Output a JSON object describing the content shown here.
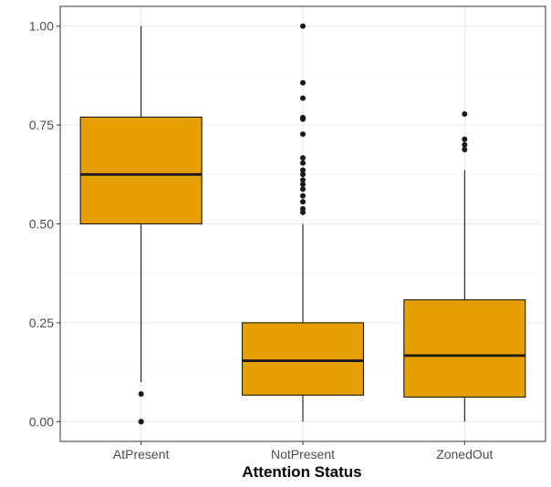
{
  "chart_data": {
    "type": "boxplot",
    "title": "",
    "xlabel": "Attention Status",
    "ylabel": "",
    "ylim": [
      -0.05,
      1.05
    ],
    "y_ticks": [
      0.0,
      0.25,
      0.5,
      0.75,
      1.0
    ],
    "y_tick_labels": [
      "0.00",
      "0.25",
      "0.50",
      "0.75",
      "1.00"
    ],
    "grid": true,
    "legend": "none",
    "fill_color": "#E69F00",
    "categories": [
      "AtPresent",
      "NotPresent",
      "ZonedOut"
    ],
    "boxes": [
      {
        "category": "AtPresent",
        "whisker_low": 0.1,
        "q1": 0.5,
        "median": 0.625,
        "q3": 0.77,
        "whisker_high": 1.0,
        "outliers": [
          0.07,
          0.0,
          0.0
        ]
      },
      {
        "category": "NotPresent",
        "whisker_low": 0.0,
        "q1": 0.067,
        "median": 0.154,
        "q3": 0.25,
        "whisker_high": 0.5,
        "outliers": [
          1.0,
          0.857,
          0.818,
          0.769,
          0.765,
          0.727,
          0.667,
          0.654,
          0.636,
          0.625,
          0.611,
          0.6,
          0.588,
          0.571,
          0.556,
          0.538,
          0.529
        ]
      },
      {
        "category": "ZonedOut",
        "whisker_low": 0.0,
        "q1": 0.062,
        "median": 0.167,
        "q3": 0.308,
        "whisker_high": 0.636,
        "outliers": [
          0.778,
          0.714,
          0.7,
          0.688
        ]
      }
    ]
  }
}
